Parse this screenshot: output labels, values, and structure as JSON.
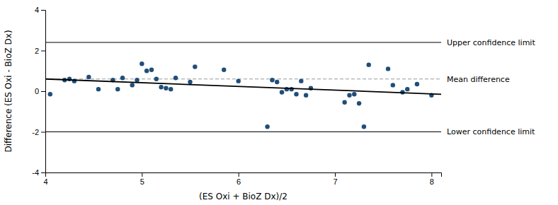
{
  "chart_data": {
    "type": "scatter",
    "xlabel": "(ES Oxi + BioZ Dx)/2",
    "ylabel": "Difference (ES Oxi - BioZ Dx)",
    "xlim": [
      4.0,
      8.1
    ],
    "ylim": [
      -4.0,
      4.0
    ],
    "xticks": [
      4,
      5,
      6,
      7,
      8
    ],
    "yticks": [
      -4,
      -2,
      0,
      2,
      4
    ],
    "grid": false,
    "series": [
      {
        "type": "scatter",
        "marker": "circle",
        "color": "#1f4e79",
        "x": [
          4.05,
          4.2,
          4.25,
          4.3,
          4.45,
          4.55,
          4.7,
          4.75,
          4.8,
          4.9,
          4.95,
          5.0,
          5.05,
          5.1,
          5.15,
          5.2,
          5.25,
          5.3,
          5.35,
          5.5,
          5.55,
          5.85,
          6.0,
          6.3,
          6.35,
          6.4,
          6.45,
          6.5,
          6.55,
          6.6,
          6.65,
          6.7,
          6.75,
          7.1,
          7.15,
          7.2,
          7.25,
          7.3,
          7.35,
          7.55,
          7.6,
          7.7,
          7.75,
          7.85,
          8.0
        ],
        "values": [
          -0.15,
          0.55,
          0.6,
          0.5,
          0.7,
          0.1,
          0.55,
          0.1,
          0.65,
          0.3,
          0.55,
          1.35,
          1.0,
          1.05,
          0.6,
          0.2,
          0.15,
          0.1,
          0.65,
          0.45,
          1.2,
          1.05,
          0.5,
          -1.75,
          0.55,
          0.45,
          -0.05,
          0.1,
          0.1,
          -0.15,
          0.5,
          -0.2,
          0.15,
          -0.55,
          -0.2,
          -0.15,
          -0.6,
          -1.75,
          1.3,
          1.1,
          0.3,
          -0.05,
          0.1,
          0.35,
          -0.2
        ]
      },
      {
        "type": "line",
        "line_style": "solid",
        "color": "#000000",
        "x": [
          4.0,
          8.1
        ],
        "values": [
          0.6,
          -0.15
        ]
      }
    ],
    "annotations": [
      {
        "text": "Upper confidence limit",
        "value": 2.4,
        "color": "#000000",
        "line_style": "solid"
      },
      {
        "text": "Mean difference",
        "value": 0.6,
        "color": "#999999",
        "line_style": "dashed"
      },
      {
        "text": "Lower confidence limit",
        "value": -2.0,
        "color": "#000000",
        "line_style": "solid"
      }
    ]
  }
}
